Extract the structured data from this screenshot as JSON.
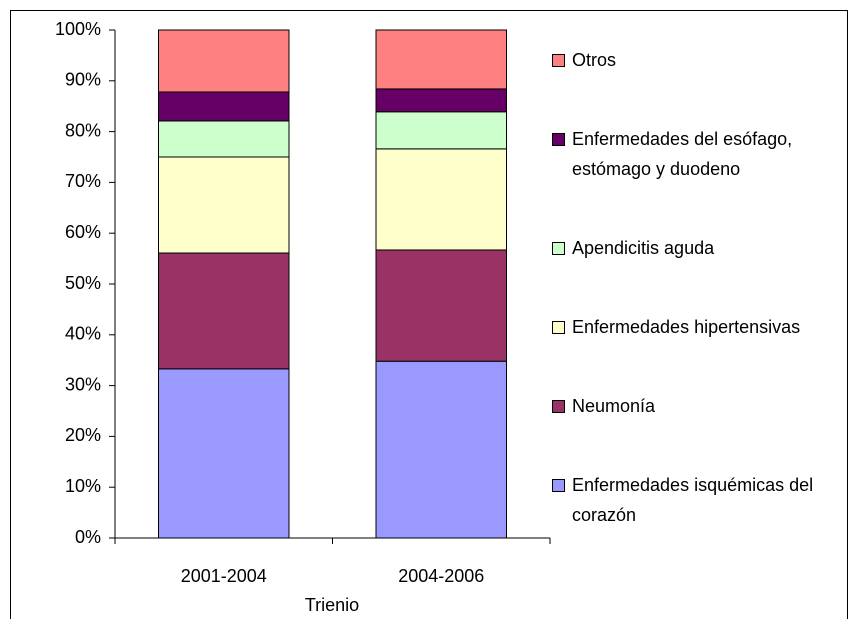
{
  "chart_data": {
    "type": "stacked_bar_100",
    "xlabel": "Trienio",
    "categories": [
      "2001-2004",
      "2004-2006"
    ],
    "series": [
      {
        "name": "Enfermedades isquémicas del corazón",
        "color": "#9999ff",
        "values": [
          33.3,
          34.8
        ]
      },
      {
        "name": "Neumonía",
        "color": "#993366",
        "values": [
          22.8,
          21.9
        ]
      },
      {
        "name": "Enfermedades hipertensivas",
        "color": "#ffffcc",
        "values": [
          18.9,
          19.9
        ]
      },
      {
        "name": "Apendicitis aguda",
        "color": "#ccffcc",
        "values": [
          7.1,
          7.3
        ]
      },
      {
        "name": "Enfermedades del esófago, estómago y duodeno",
        "color": "#660066",
        "values": [
          5.7,
          4.5
        ]
      },
      {
        "name": "Otros",
        "color": "#ff8080",
        "values": [
          12.2,
          11.6
        ]
      }
    ],
    "ylim": [
      0,
      100
    ],
    "yticks": [
      {
        "value": 0,
        "label": "0%"
      },
      {
        "value": 10,
        "label": "10%"
      },
      {
        "value": 20,
        "label": "20%"
      },
      {
        "value": 30,
        "label": "30%"
      },
      {
        "value": 40,
        "label": "40%"
      },
      {
        "value": 50,
        "label": "50%"
      },
      {
        "value": 60,
        "label": "60%"
      },
      {
        "value": 70,
        "label": "70%"
      },
      {
        "value": 80,
        "label": "80%"
      },
      {
        "value": 90,
        "label": "90%"
      },
      {
        "value": 100,
        "label": "100%"
      }
    ],
    "legend": "right"
  }
}
